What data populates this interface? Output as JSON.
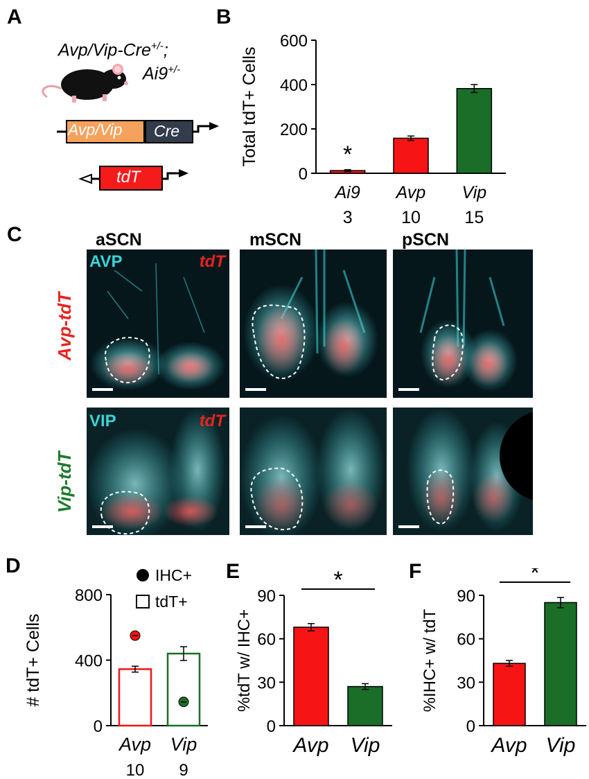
{
  "panels": {
    "A": "A",
    "B": "B",
    "C": "C",
    "D": "D",
    "E": "E",
    "F": "F"
  },
  "panelA": {
    "genotype_line1": "Avp/Vip-Cre",
    "genotype_sup1": "+/-",
    "genotype_suffix1": ";",
    "genotype_line2": "Ai9",
    "genotype_sup2": "+/-",
    "construct1_promoter": "Avp/Vip",
    "construct1_gene": "Cre",
    "construct2_gene": "tdT"
  },
  "panelC": {
    "columns": [
      "aSCN",
      "mSCN",
      "pSCN"
    ],
    "rows": [
      {
        "label": "Avp-tdT",
        "color": "#e8231f",
        "stain": "AVP",
        "reporter": "tdT"
      },
      {
        "label": "Vip-tdT",
        "color": "#1e7a2e",
        "stain": "VIP",
        "reporter": "tdT"
      }
    ]
  },
  "colors": {
    "avp": "#f61414",
    "vip": "#1a6e28",
    "stain": "#38d4d6",
    "reporter": "#e8231f"
  },
  "chart_data": [
    {
      "panel": "B",
      "type": "bar",
      "categories": [
        "Ai9",
        "Avp",
        "Vip"
      ],
      "n": [
        "3",
        "10",
        "15"
      ],
      "values": [
        12,
        158,
        382
      ],
      "errors": [
        4,
        10,
        18
      ],
      "colors": [
        "#f61414",
        "#f61414",
        "#1a6e28"
      ],
      "ylabel": "Total tdT+ Cells",
      "ylim": [
        0,
        600
      ],
      "yticks": [
        0,
        200,
        400,
        600
      ],
      "annotation": "*"
    },
    {
      "panel": "D",
      "type": "bar",
      "categories": [
        "Avp",
        "Vip"
      ],
      "n": [
        "10",
        "9"
      ],
      "values": [
        345,
        440
      ],
      "errors": [
        18,
        42
      ],
      "points": [
        550,
        145
      ],
      "colors": [
        "#f61414",
        "#1a6e28"
      ],
      "ylabel": "# tdT+ Cells",
      "ylim": [
        0,
        800
      ],
      "yticks": [
        0,
        400,
        800
      ],
      "legend": [
        {
          "marker": "filled-circle",
          "label": "IHC+"
        },
        {
          "marker": "open-square",
          "label": "tdT+"
        }
      ]
    },
    {
      "panel": "E",
      "type": "bar",
      "categories": [
        "Avp",
        "Vip"
      ],
      "values": [
        68,
        27
      ],
      "errors": [
        2.5,
        2
      ],
      "colors": [
        "#f61414",
        "#1a6e28"
      ],
      "ylabel": "%tdT w/ IHC+",
      "ylim": [
        0,
        90
      ],
      "yticks": [
        0,
        30,
        60,
        90
      ],
      "annotation": "*"
    },
    {
      "panel": "F",
      "type": "bar",
      "categories": [
        "Avp",
        "Vip"
      ],
      "values": [
        43,
        85
      ],
      "errors": [
        2,
        3.5
      ],
      "colors": [
        "#f61414",
        "#1a6e28"
      ],
      "ylabel": "%IHC+ w/ tdT",
      "ylim": [
        0,
        90
      ],
      "yticks": [
        0,
        30,
        60,
        90
      ],
      "annotation": "*"
    }
  ]
}
